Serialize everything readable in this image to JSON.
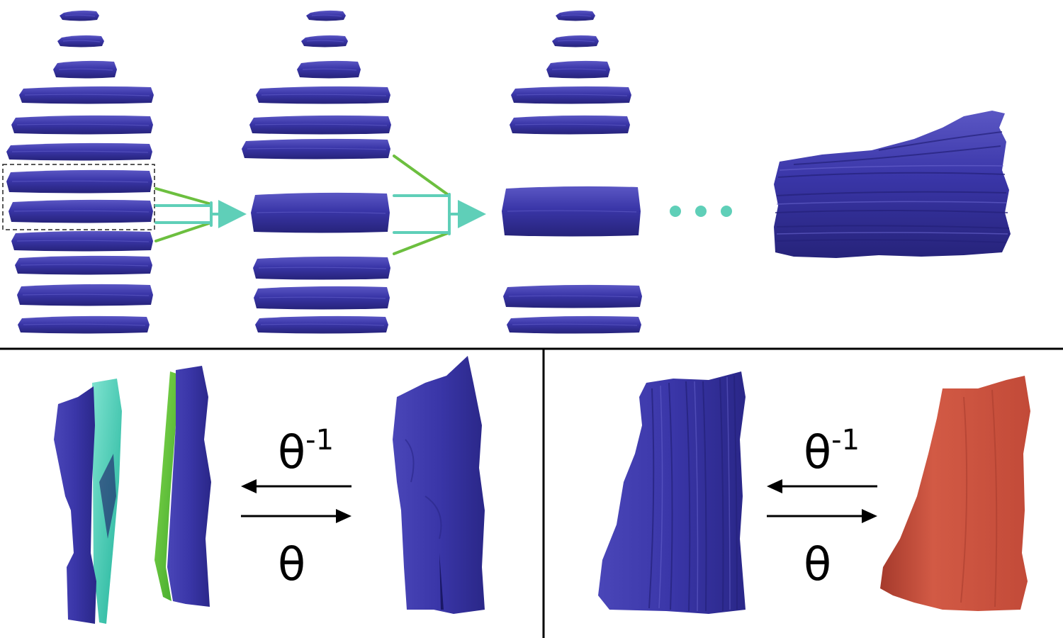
{
  "colors": {
    "slab": "#3a36a8",
    "slab_dark": "#26237a",
    "slab_light": "#5b57c4",
    "green": "#6cbf3f",
    "teal": "#5fcfb8",
    "cyan_surface": "#34d0b8",
    "lime_surface": "#5ecb3c",
    "terracotta": "#c8503e",
    "terracotta_light": "#dc6a55",
    "divider": "#000000",
    "selection_box": "#222222"
  },
  "labels": {
    "theta_inverse_base": "θ",
    "theta_inverse_exp": "-1",
    "theta": "θ",
    "theta_inverse_base_2": "θ",
    "theta_inverse_exp_2": "-1",
    "theta_2": "θ"
  },
  "icons": {
    "ellipsis": "ellipsis-icon",
    "arrow_left": "arrow-left-icon",
    "arrow_right": "arrow-right-icon"
  }
}
